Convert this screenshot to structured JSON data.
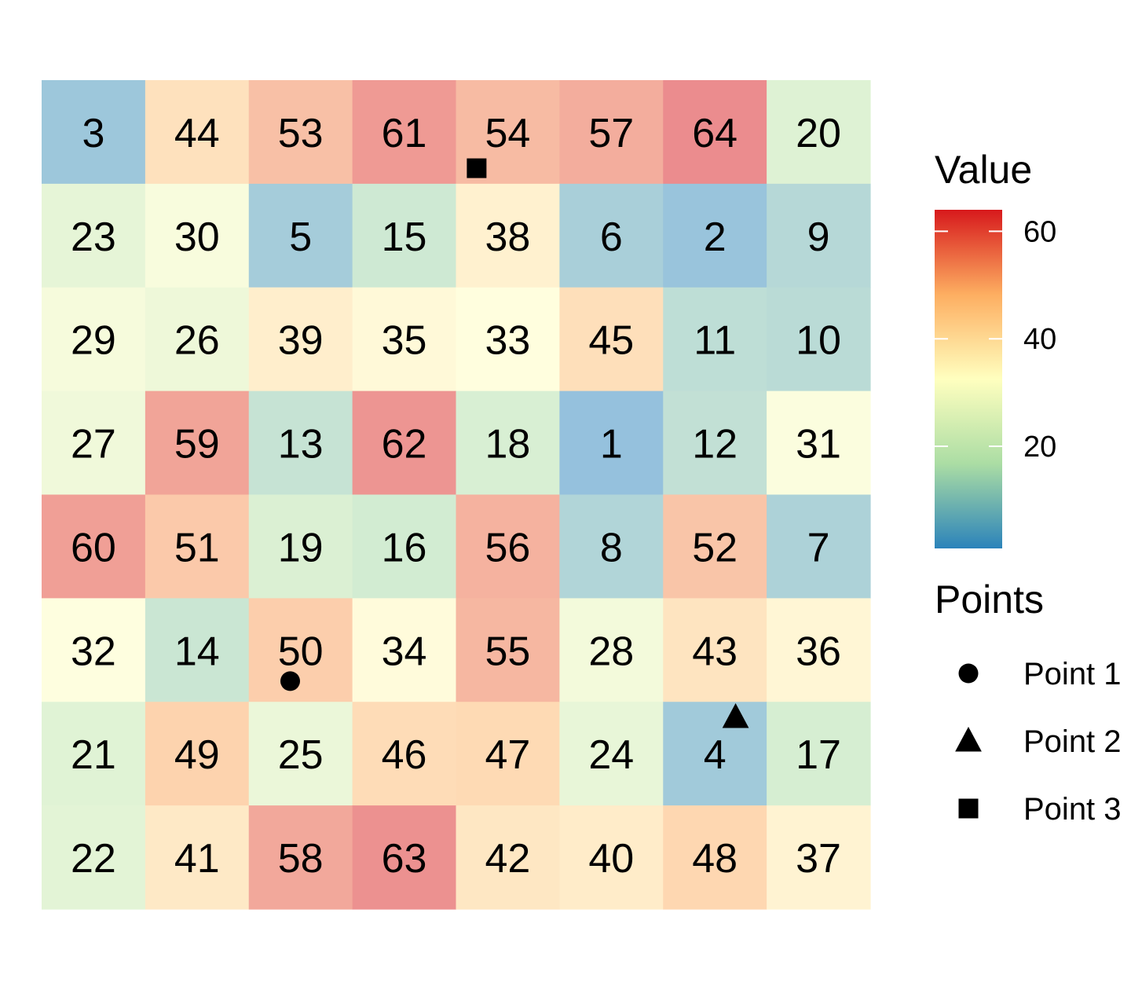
{
  "chart_data": {
    "type": "heatmap",
    "rows": 8,
    "cols": 8,
    "values": [
      [
        3,
        44,
        53,
        61,
        54,
        57,
        64,
        20
      ],
      [
        23,
        30,
        5,
        15,
        38,
        6,
        2,
        9
      ],
      [
        29,
        26,
        39,
        35,
        33,
        45,
        11,
        10
      ],
      [
        27,
        59,
        13,
        62,
        18,
        1,
        12,
        31
      ],
      [
        60,
        51,
        19,
        16,
        56,
        8,
        52,
        7
      ],
      [
        32,
        14,
        50,
        34,
        55,
        28,
        43,
        36
      ],
      [
        21,
        49,
        25,
        46,
        47,
        24,
        4,
        17
      ],
      [
        22,
        41,
        58,
        63,
        42,
        40,
        48,
        37
      ]
    ],
    "color_scale": {
      "title": "Value",
      "palette": "Spectral",
      "min": 1,
      "max": 64,
      "ticks": [
        20,
        40,
        60
      ],
      "tile_alpha": 0.5,
      "stops": [
        "#2b83ba",
        "#abdda4",
        "#ffffbf",
        "#fdae61",
        "#d7191c"
      ]
    },
    "points": [
      {
        "name": "Point 1",
        "shape": "circle",
        "col": 2.4,
        "row": 5.8
      },
      {
        "name": "Point 2",
        "shape": "triangle",
        "col": 6.7,
        "row": 6.15
      },
      {
        "name": "Point 3",
        "shape": "square",
        "col": 4.2,
        "row": 0.85
      }
    ],
    "points_legend": {
      "title": "Points"
    },
    "grid": false,
    "legend_position": "right"
  }
}
